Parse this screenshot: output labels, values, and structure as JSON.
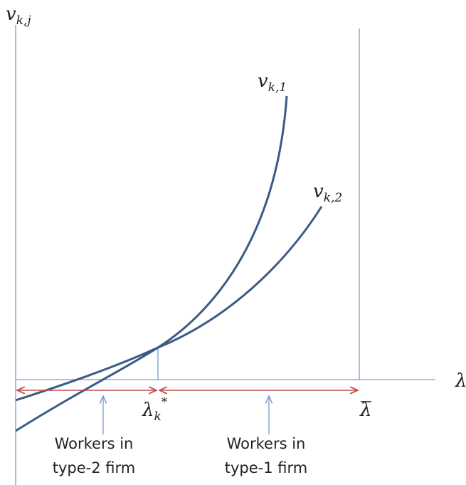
{
  "axes": {
    "y_label": {
      "main": "v",
      "sub": "k,j"
    },
    "x_label": "λ"
  },
  "curves": [
    {
      "main": "v",
      "sub": "k,1"
    },
    {
      "main": "v",
      "sub": "k,2"
    }
  ],
  "markers": [
    {
      "main": "λ",
      "sub": "k",
      "sup": "*"
    },
    {
      "main": "λ"
    }
  ],
  "regions": [
    {
      "line1": "Workers in",
      "line2": "type-2 firm"
    },
    {
      "line1": "Workers in",
      "line2": "type-1 firm"
    }
  ]
}
